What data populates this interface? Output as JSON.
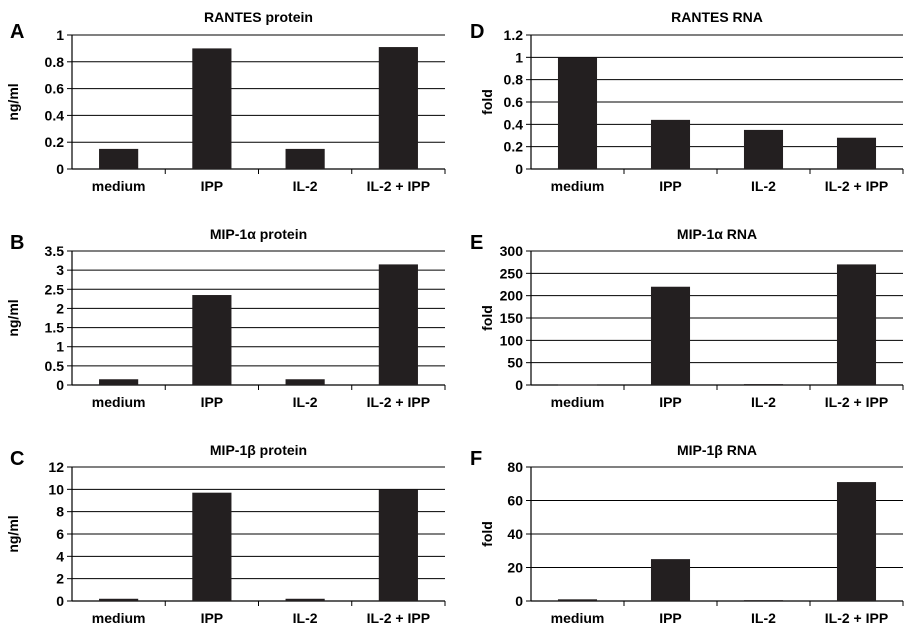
{
  "chart_data": [
    {
      "panel": "A",
      "type": "bar",
      "title": "RANTES protein",
      "ylabel": "ng/ml",
      "xlabel": "",
      "categories": [
        "medium",
        "IPP",
        "IL-2",
        "IL-2 + IPP"
      ],
      "values": [
        0.15,
        0.9,
        0.15,
        0.91
      ],
      "ylim": [
        0,
        1
      ],
      "yticks": [
        "0",
        "0.2",
        "0.4",
        "0.6",
        "0.8",
        "1"
      ],
      "grid": true
    },
    {
      "panel": "B",
      "type": "bar",
      "title": "MIP-1α protein",
      "ylabel": "ng/ml",
      "xlabel": "",
      "categories": [
        "medium",
        "IPP",
        "IL-2",
        "IL-2 + IPP"
      ],
      "values": [
        0.15,
        2.35,
        0.15,
        3.15
      ],
      "ylim": [
        0,
        3.5
      ],
      "yticks": [
        "0",
        "0.5",
        "1",
        "1.5",
        "2",
        "2.5",
        "3",
        "3.5"
      ],
      "grid": true
    },
    {
      "panel": "C",
      "type": "bar",
      "title": "MIP-1β protein",
      "ylabel": "ng/ml",
      "xlabel": "",
      "categories": [
        "medium",
        "IPP",
        "IL-2",
        "IL-2 + IPP"
      ],
      "values": [
        0.2,
        9.7,
        0.2,
        10.0
      ],
      "ylim": [
        0,
        12
      ],
      "yticks": [
        "0",
        "2",
        "4",
        "6",
        "8",
        "10",
        "12"
      ],
      "grid": true
    },
    {
      "panel": "D",
      "type": "bar",
      "title": "RANTES RNA",
      "ylabel": "fold",
      "xlabel": "",
      "categories": [
        "medium",
        "IPP",
        "IL-2",
        "IL-2 + IPP"
      ],
      "values": [
        1.0,
        0.44,
        0.35,
        0.28
      ],
      "ylim": [
        0,
        1.2
      ],
      "yticks": [
        "0",
        "0.2",
        "0.4",
        "0.6",
        "0.8",
        "1",
        "1.2"
      ],
      "grid": true
    },
    {
      "panel": "E",
      "type": "bar",
      "title": "MIP-1α RNA",
      "ylabel": "fold",
      "xlabel": "",
      "categories": [
        "medium",
        "IPP",
        "IL-2",
        "IL-2 + IPP"
      ],
      "values": [
        1,
        220,
        2,
        270
      ],
      "ylim": [
        0,
        300
      ],
      "yticks": [
        "0",
        "50",
        "100",
        "150",
        "200",
        "250",
        "300"
      ],
      "grid": true
    },
    {
      "panel": "F",
      "type": "bar",
      "title": "MIP-1β RNA",
      "ylabel": "fold",
      "xlabel": "",
      "categories": [
        "medium",
        "IPP",
        "IL-2",
        "IL-2 + IPP"
      ],
      "values": [
        1,
        25,
        0.5,
        71
      ],
      "ylim": [
        0,
        80
      ],
      "yticks": [
        "0",
        "20",
        "40",
        "60",
        "80"
      ],
      "grid": true
    }
  ],
  "colors": {
    "bar": "#231f20",
    "gridline": "#000000",
    "axis": "#000000",
    "background": "#ffffff"
  }
}
